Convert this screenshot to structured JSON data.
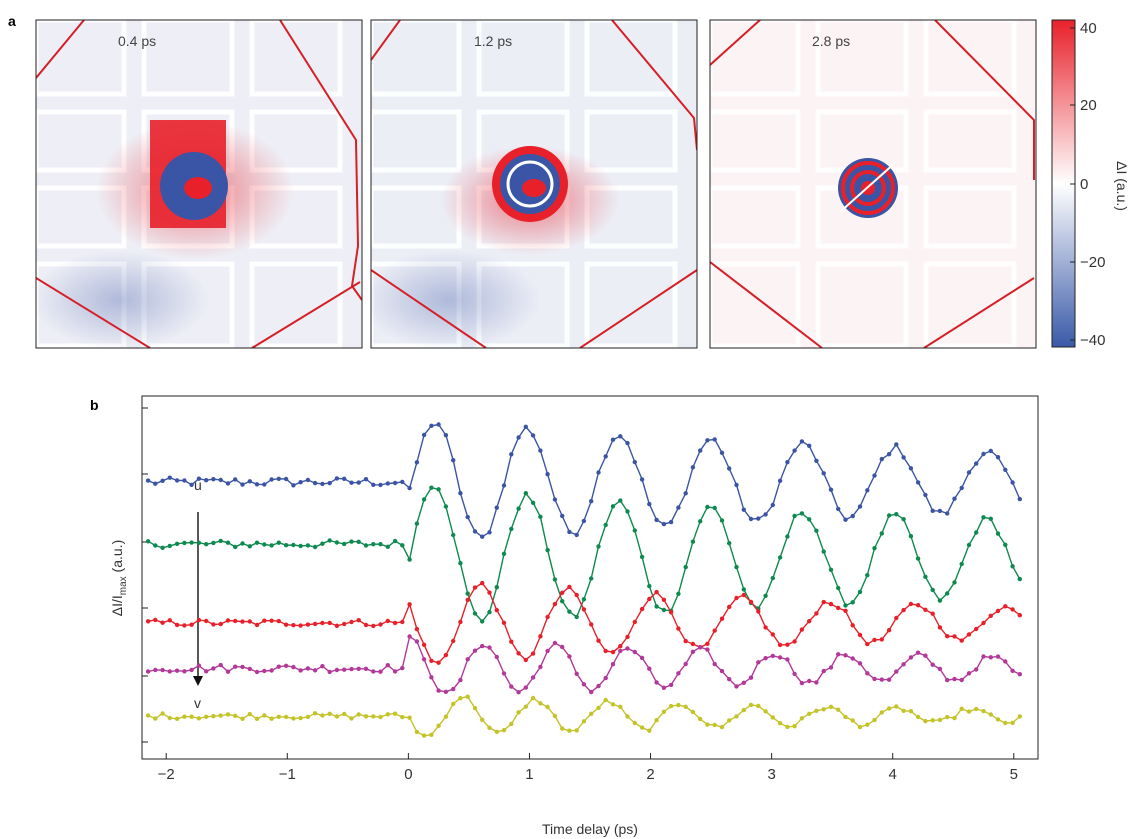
{
  "panel_a": {
    "letter": "a",
    "panels": [
      {
        "time_label": "0.4 ps"
      },
      {
        "time_label": "1.2 ps"
      },
      {
        "time_label": "2.8 ps"
      }
    ],
    "colorbar": {
      "label": "ΔI (a.u.)",
      "ticks": [
        "40",
        "20",
        "0",
        "−20",
        "−40"
      ],
      "range": [
        -40,
        40
      ],
      "colors": {
        "max": "#e8202a",
        "mid": "#ffffff",
        "min": "#3a5aa8"
      }
    },
    "colors": {
      "positive": "#e8202a",
      "negative": "#3a55a5",
      "edge": "#d42026"
    }
  },
  "panel_b": {
    "letter": "b",
    "ylabel_main": "ΔI/I",
    "ylabel_sub": "max",
    "ylabel_unit": " (a.u.)",
    "arrow_top": "u",
    "arrow_bottom": "v"
  },
  "chart_data": {
    "type": "line",
    "xlabel": "Time delay (ps)",
    "ylabel": "ΔI/I max (a.u.)",
    "xlim": [
      -2.2,
      5.2
    ],
    "xticks": [
      "−2",
      "−1",
      "0",
      "1",
      "2",
      "3",
      "4",
      "5"
    ],
    "xtick_values": [
      -2,
      -1,
      0,
      1,
      2,
      3,
      4,
      5
    ],
    "grid": false,
    "series": [
      {
        "color": "#3b55a4",
        "offset": 4.9,
        "amplitude": 1.3,
        "decay": 0.15,
        "period": 0.76,
        "phase": 0.22,
        "shift": 0.0,
        "noise": 0.09
      },
      {
        "color": "#0e8a4f",
        "offset": 3.6,
        "amplitude": 1.45,
        "decay": 0.12,
        "period": 0.76,
        "phase": 0.22,
        "shift": -0.3,
        "noise": 0.08
      },
      {
        "color": "#e8202a",
        "offset": 1.95,
        "amplitude": 0.9,
        "decay": 0.2,
        "period": 0.72,
        "phase": 0.6,
        "shift": 0.0,
        "noise": 0.07
      },
      {
        "color": "#b2389a",
        "offset": 1.0,
        "amplitude": 0.6,
        "decay": 0.2,
        "period": 0.6,
        "phase": 0.62,
        "shift": 0.0,
        "noise": 0.08
      },
      {
        "color": "#c4c42a",
        "offset": 0.0,
        "amplitude": 0.45,
        "decay": 0.25,
        "period": 0.6,
        "phase": 0.45,
        "shift": 0.0,
        "noise": 0.06
      }
    ]
  }
}
